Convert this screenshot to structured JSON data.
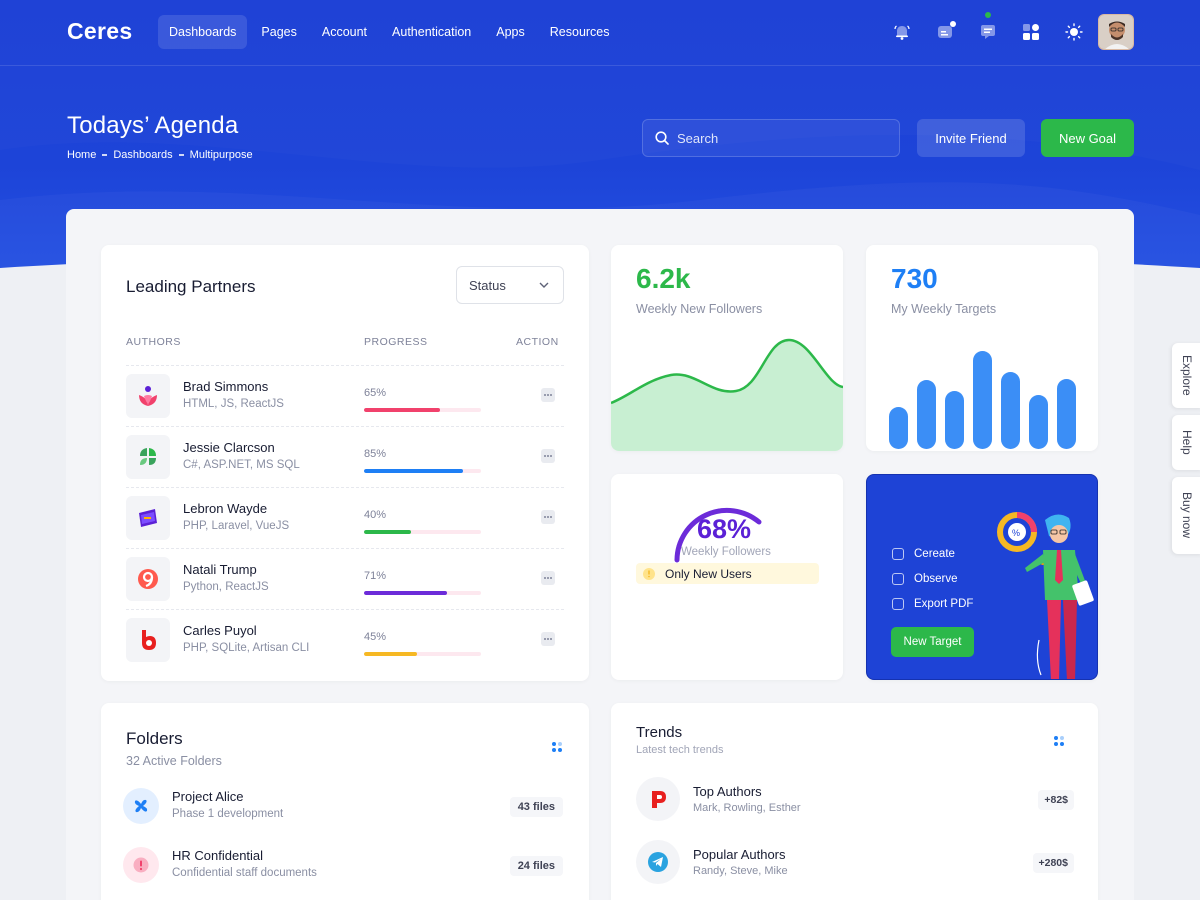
{
  "app": {
    "logo": "Ceres"
  },
  "nav": {
    "items": [
      "Dashboards",
      "Pages",
      "Account",
      "Authentication",
      "Apps",
      "Resources"
    ],
    "active": "Dashboards"
  },
  "topbar": {
    "icons": [
      "bell-icon",
      "chat-icon",
      "message-icon",
      "apps-grid-icon",
      "sun-icon"
    ]
  },
  "header": {
    "title": "Todays’ Agenda",
    "breadcrumb": [
      "Home",
      "Dashboards",
      "Multipurpose"
    ],
    "search_placeholder": "Search",
    "invite_label": "Invite Friend",
    "goal_label": "New Goal"
  },
  "partners": {
    "title": "Leading Partners",
    "filter_label": "Status",
    "columns": [
      "AUTHORS",
      "PROGRESS",
      "ACTION"
    ],
    "rows": [
      {
        "name": "Brad Simmons",
        "skills": "HTML, JS, ReactJS",
        "progress": "65%",
        "value": 0.65,
        "color": "#f1416c"
      },
      {
        "name": "Jessie Clarcson",
        "skills": "C#, ASP.NET, MS SQL",
        "progress": "85%",
        "value": 0.85,
        "color": "#1e7ff5"
      },
      {
        "name": "Lebron Wayde",
        "skills": "PHP, Laravel, VueJS",
        "progress": "40%",
        "value": 0.4,
        "color": "#2cb84a"
      },
      {
        "name": "Natali Trump",
        "skills": "Python, ReactJS",
        "progress": "71%",
        "value": 0.71,
        "color": "#6c2bd9"
      },
      {
        "name": "Carles Puyol",
        "skills": "PHP, SQLite, Artisan CLI",
        "progress": "45%",
        "value": 0.45,
        "color": "#f6b823"
      }
    ]
  },
  "followers": {
    "value": "6.2k",
    "label": "Weekly New Followers",
    "color": "#2cb84a"
  },
  "targets": {
    "value": "730",
    "label": "My Weekly Targets",
    "color": "#1e7ff5"
  },
  "gauge": {
    "value": "68%",
    "label": "Weekly Followers",
    "badge": "Only New Users",
    "fraction": 0.68
  },
  "new_target": {
    "items": [
      "Cereate",
      "Observe",
      "Export PDF"
    ],
    "button": "New Target"
  },
  "folders": {
    "title": "Folders",
    "subtitle": "32 Active Folders",
    "items": [
      {
        "name": "Project Alice",
        "desc": "Phase 1 development",
        "count": "43 files"
      },
      {
        "name": "HR Confidential",
        "desc": "Confidential staff documents",
        "count": "24 files"
      }
    ]
  },
  "trends": {
    "title": "Trends",
    "subtitle": "Latest tech trends",
    "items": [
      {
        "name": "Top Authors",
        "desc": "Mark, Rowling, Esther",
        "value": "+82$"
      },
      {
        "name": "Popular Authors",
        "desc": "Randy, Steve, Mike",
        "value": "+280$"
      }
    ]
  },
  "side_tabs": [
    "Explore",
    "Help",
    "Buy now"
  ]
}
